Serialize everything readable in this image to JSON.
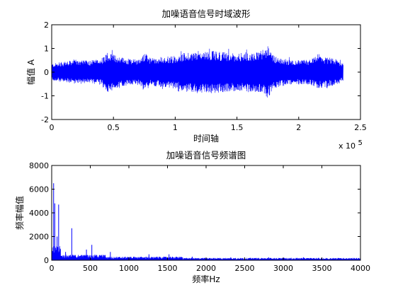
{
  "chart_data": [
    {
      "type": "line",
      "title": "加噪语音信号时域波形",
      "xlabel": "时间轴",
      "ylabel": "幅值 A",
      "xlim": [
        0,
        2.5
      ],
      "ylim": [
        -2,
        2
      ],
      "x_multiplier": "x 10",
      "x_multiplier_exp": "5",
      "x_ticks": [
        "0",
        "0.5",
        "1",
        "1.5",
        "2",
        "2.5"
      ],
      "y_ticks": [
        "-2",
        "-1",
        "0",
        "1",
        "2"
      ],
      "color": "#0000ff",
      "series": [
        {
          "x_range": [
            0,
            2.36
          ],
          "envelope": [
            [
              0.0,
              0.35
            ],
            [
              0.1,
              0.45
            ],
            [
              0.2,
              0.5
            ],
            [
              0.3,
              0.5
            ],
            [
              0.4,
              0.55
            ],
            [
              0.45,
              0.85
            ],
            [
              0.5,
              0.75
            ],
            [
              0.6,
              0.6
            ],
            [
              0.7,
              0.55
            ],
            [
              0.75,
              0.8
            ],
            [
              0.8,
              0.6
            ],
            [
              0.9,
              0.65
            ],
            [
              1.0,
              0.7
            ],
            [
              1.1,
              0.85
            ],
            [
              1.2,
              0.9
            ],
            [
              1.3,
              0.9
            ],
            [
              1.4,
              0.85
            ],
            [
              1.5,
              0.8
            ],
            [
              1.6,
              0.85
            ],
            [
              1.7,
              0.9
            ],
            [
              1.75,
              1.1
            ],
            [
              1.8,
              0.7
            ],
            [
              1.9,
              0.55
            ],
            [
              2.0,
              0.5
            ],
            [
              2.1,
              0.55
            ],
            [
              2.15,
              0.7
            ],
            [
              2.2,
              0.65
            ],
            [
              2.3,
              0.55
            ],
            [
              2.36,
              0.4
            ]
          ]
        }
      ]
    },
    {
      "type": "line",
      "title": "加噪语音信号频谱图",
      "xlabel": "频率Hz",
      "ylabel": "频率幅值",
      "xlim": [
        0,
        4000
      ],
      "ylim": [
        0,
        8000
      ],
      "x_ticks": [
        "0",
        "500",
        "1000",
        "1500",
        "2000",
        "2500",
        "3000",
        "3500",
        "4000"
      ],
      "y_ticks": [
        "0",
        "2000",
        "4000",
        "6000",
        "8000"
      ],
      "color": "#0000ff",
      "peaks": [
        {
          "x": 25,
          "y": 6500
        },
        {
          "x": 40,
          "y": 4800
        },
        {
          "x": 70,
          "y": 2000
        },
        {
          "x": 90,
          "y": 4700
        },
        {
          "x": 110,
          "y": 900
        },
        {
          "x": 180,
          "y": 700
        },
        {
          "x": 260,
          "y": 2700
        },
        {
          "x": 450,
          "y": 900
        },
        {
          "x": 520,
          "y": 1300
        },
        {
          "x": 760,
          "y": 700
        },
        {
          "x": 1260,
          "y": 500
        },
        {
          "x": 1520,
          "y": 500
        },
        {
          "x": 1820,
          "y": 300
        },
        {
          "x": 2320,
          "y": 250
        },
        {
          "x": 2810,
          "y": 250
        },
        {
          "x": 3260,
          "y": 250
        }
      ]
    }
  ]
}
